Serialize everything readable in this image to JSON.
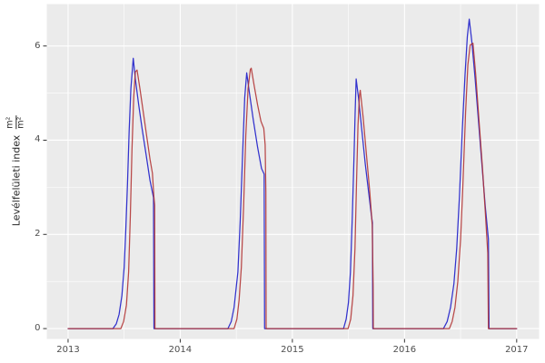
{
  "figure": {
    "background": "#FFFFFF"
  },
  "chart_data": {
    "type": "line",
    "title": "",
    "ylabel_text": "Levélfelületi index",
    "ylabel_fraction": {
      "numerator": "m²",
      "denominator": "m²"
    },
    "xlabel": "",
    "legend": "none",
    "grid": true,
    "panel_bg": "#EBEBEB",
    "grid_color": "#FFFFFF",
    "tick_color": "#333333",
    "tick_label_color": "#4D4D4D",
    "xlim": [
      2012.81,
      2017.2
    ],
    "ylim": [
      -0.22,
      6.89
    ],
    "x_ticks": [
      2013,
      2014,
      2015,
      2016,
      2017
    ],
    "x_tick_labels": [
      "2013",
      "2014",
      "2015",
      "2016",
      "2017"
    ],
    "x_minor_breaks": [
      2013.5,
      2014.5,
      2015.5,
      2016.5
    ],
    "y_ticks": [
      0,
      2,
      4,
      6
    ],
    "y_tick_labels": [
      "0",
      "2",
      "4",
      "6"
    ],
    "y_minor_breaks": [
      1,
      3,
      5
    ],
    "series": [
      {
        "name": "blue",
        "color": "#3232CD",
        "points": [
          [
            2013.0,
            0
          ],
          [
            2013.4,
            0
          ],
          [
            2013.43,
            0.1
          ],
          [
            2013.455,
            0.3
          ],
          [
            2013.48,
            0.7
          ],
          [
            2013.5,
            1.3
          ],
          [
            2013.515,
            2.1
          ],
          [
            2013.53,
            3.1
          ],
          [
            2013.545,
            4.2
          ],
          [
            2013.56,
            5.1
          ],
          [
            2013.581,
            5.74
          ],
          [
            2013.6,
            5.3
          ],
          [
            2013.63,
            4.75
          ],
          [
            2013.66,
            4.25
          ],
          [
            2013.695,
            3.7
          ],
          [
            2013.73,
            3.15
          ],
          [
            2013.762,
            2.78
          ],
          [
            2013.766,
            0
          ],
          [
            2014.0,
            0
          ],
          [
            2014.425,
            0
          ],
          [
            2014.455,
            0.15
          ],
          [
            2014.48,
            0.45
          ],
          [
            2014.5,
            0.9
          ],
          [
            2014.514,
            1.2
          ],
          [
            2014.535,
            2.3
          ],
          [
            2014.555,
            3.6
          ],
          [
            2014.575,
            4.9
          ],
          [
            2014.593,
            5.43
          ],
          [
            2014.62,
            4.95
          ],
          [
            2014.65,
            4.45
          ],
          [
            2014.69,
            3.85
          ],
          [
            2014.725,
            3.4
          ],
          [
            2014.748,
            3.28
          ],
          [
            2014.752,
            0
          ],
          [
            2015.0,
            0
          ],
          [
            2015.456,
            0
          ],
          [
            2015.48,
            0.2
          ],
          [
            2015.5,
            0.55
          ],
          [
            2015.518,
            1.2
          ],
          [
            2015.535,
            2.4
          ],
          [
            2015.55,
            3.7
          ],
          [
            2015.56,
            4.6
          ],
          [
            2015.569,
            5.3
          ],
          [
            2015.59,
            4.9
          ],
          [
            2015.62,
            4.2
          ],
          [
            2015.65,
            3.5
          ],
          [
            2015.68,
            2.9
          ],
          [
            2015.705,
            2.4
          ],
          [
            2015.714,
            2.25
          ],
          [
            2015.717,
            0
          ],
          [
            2016.0,
            0
          ],
          [
            2016.347,
            0
          ],
          [
            2016.38,
            0.15
          ],
          [
            2016.41,
            0.45
          ],
          [
            2016.44,
            0.95
          ],
          [
            2016.465,
            1.7
          ],
          [
            2016.49,
            2.8
          ],
          [
            2016.515,
            4.2
          ],
          [
            2016.54,
            5.4
          ],
          [
            2016.56,
            6.2
          ],
          [
            2016.577,
            6.57
          ],
          [
            2016.6,
            6.1
          ],
          [
            2016.63,
            5.3
          ],
          [
            2016.66,
            4.4
          ],
          [
            2016.69,
            3.5
          ],
          [
            2016.72,
            2.6
          ],
          [
            2016.748,
            1.9
          ],
          [
            2016.754,
            0
          ],
          [
            2017.0,
            0
          ]
        ]
      },
      {
        "name": "red",
        "color": "#B03030",
        "points": [
          [
            2013.0,
            0
          ],
          [
            2013.47,
            0
          ],
          [
            2013.495,
            0.15
          ],
          [
            2013.52,
            0.5
          ],
          [
            2013.54,
            1.2
          ],
          [
            2013.555,
            2.4
          ],
          [
            2013.57,
            3.8
          ],
          [
            2013.585,
            4.9
          ],
          [
            2013.6,
            5.45
          ],
          [
            2013.615,
            5.49
          ],
          [
            2013.64,
            5.1
          ],
          [
            2013.67,
            4.6
          ],
          [
            2013.7,
            4.1
          ],
          [
            2013.73,
            3.6
          ],
          [
            2013.752,
            3.3
          ],
          [
            2013.765,
            2.8
          ],
          [
            2013.772,
            2.62
          ],
          [
            2013.775,
            0
          ],
          [
            2014.0,
            0
          ],
          [
            2014.48,
            0
          ],
          [
            2014.505,
            0.2
          ],
          [
            2014.525,
            0.6
          ],
          [
            2014.545,
            1.3
          ],
          [
            2014.565,
            2.6
          ],
          [
            2014.585,
            4.1
          ],
          [
            2014.605,
            5.1
          ],
          [
            2014.625,
            5.5
          ],
          [
            2014.633,
            5.53
          ],
          [
            2014.66,
            5.15
          ],
          [
            2014.69,
            4.75
          ],
          [
            2014.72,
            4.4
          ],
          [
            2014.745,
            4.25
          ],
          [
            2014.757,
            3.9
          ],
          [
            2014.764,
            2.9
          ],
          [
            2014.766,
            0
          ],
          [
            2015.0,
            0
          ],
          [
            2015.497,
            0
          ],
          [
            2015.52,
            0.2
          ],
          [
            2015.54,
            0.7
          ],
          [
            2015.558,
            1.7
          ],
          [
            2015.572,
            3.1
          ],
          [
            2015.585,
            4.3
          ],
          [
            2015.598,
            4.95
          ],
          [
            2015.605,
            5.06
          ],
          [
            2015.63,
            4.5
          ],
          [
            2015.66,
            3.7
          ],
          [
            2015.69,
            2.9
          ],
          [
            2015.712,
            2.2
          ],
          [
            2015.72,
            0.9
          ],
          [
            2015.722,
            0
          ],
          [
            2016.0,
            0
          ],
          [
            2016.4,
            0
          ],
          [
            2016.425,
            0.15
          ],
          [
            2016.45,
            0.45
          ],
          [
            2016.475,
            1.0
          ],
          [
            2016.5,
            1.9
          ],
          [
            2016.52,
            3.0
          ],
          [
            2016.545,
            4.6
          ],
          [
            2016.565,
            5.6
          ],
          [
            2016.585,
            6.02
          ],
          [
            2016.61,
            6.06
          ],
          [
            2016.635,
            5.4
          ],
          [
            2016.665,
            4.4
          ],
          [
            2016.695,
            3.4
          ],
          [
            2016.72,
            2.5
          ],
          [
            2016.742,
            1.6
          ],
          [
            2016.748,
            0
          ],
          [
            2017.0,
            0
          ]
        ]
      }
    ]
  }
}
